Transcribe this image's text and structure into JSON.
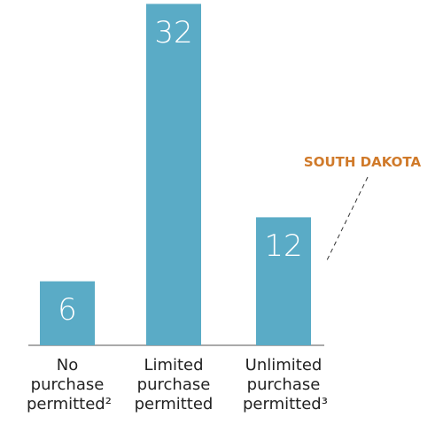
{
  "chart_data": {
    "type": "bar",
    "categories": [
      "No purchase permitted²",
      "Limited purchase permitted",
      "Unlimited purchase permitted³"
    ],
    "values": [
      6,
      32,
      12
    ],
    "color": "#5aabc6",
    "annotation": "SOUTH DAKOTA",
    "annotation_color": "#d07a2a"
  }
}
